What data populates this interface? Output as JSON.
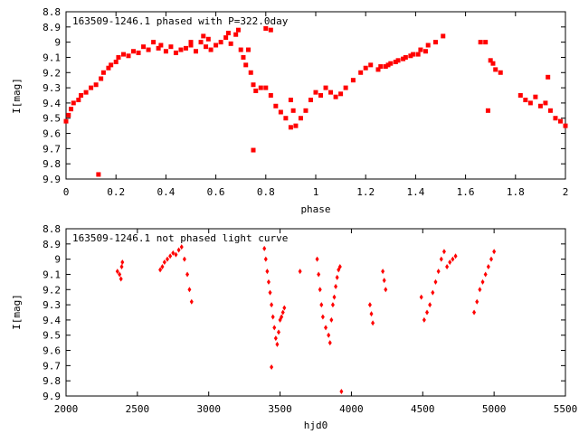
{
  "chart_data": [
    {
      "type": "scatter",
      "title": "163509-1246.1 phased with P=322.0day",
      "xlabel": "phase",
      "ylabel": "I[mag]",
      "xlim": [
        0,
        2
      ],
      "ylim": [
        9.9,
        8.8
      ],
      "y_inverted": true,
      "x_ticks": [
        "0",
        "0.2",
        "0.4",
        "0.6",
        "0.8",
        "1",
        "1.2",
        "1.4",
        "1.6",
        "1.8",
        "2"
      ],
      "y_ticks": [
        "8.8",
        "8.9",
        "9",
        "9.1",
        "9.2",
        "9.3",
        "9.4",
        "9.5",
        "9.6",
        "9.7",
        "9.8",
        "9.9"
      ],
      "marker": "filled-square",
      "series": [
        {
          "color": "#ff0000",
          "x": [
            0.0,
            0.01,
            0.02,
            0.03,
            0.05,
            0.06,
            0.08,
            0.1,
            0.12,
            0.14,
            0.15,
            0.17,
            0.18,
            0.2,
            0.21,
            0.23,
            0.25,
            0.27,
            0.29,
            0.31,
            0.33,
            0.35,
            0.37,
            0.38,
            0.4,
            0.42,
            0.44,
            0.46,
            0.48,
            0.5,
            0.52,
            0.54,
            0.56,
            0.57,
            0.58,
            0.6,
            0.62,
            0.64,
            0.66,
            0.68,
            0.7,
            0.71,
            0.72,
            0.74,
            0.75,
            0.76,
            0.78,
            0.8,
            0.82,
            0.84,
            0.86,
            0.88,
            0.9,
            0.92,
            0.94,
            0.96,
            0.98,
            1.0,
            1.02,
            1.04,
            1.06,
            1.08,
            1.1,
            1.12,
            1.15,
            1.18,
            1.2,
            1.22,
            1.25,
            1.28,
            1.3,
            1.33,
            1.36,
            1.39,
            1.42,
            1.45,
            1.48,
            1.51,
            0.13,
            0.75,
            0.5,
            0.55,
            0.65,
            0.69,
            0.73,
            0.8,
            0.82,
            0.9,
            0.91,
            1.26,
            1.29,
            1.32,
            1.35,
            1.38,
            1.41,
            1.44,
            1.66,
            1.68,
            1.69,
            1.7,
            1.71,
            1.72,
            1.74,
            1.82,
            1.84,
            1.86,
            1.88,
            1.9,
            1.92,
            1.93,
            1.94,
            1.96,
            1.98,
            2.0
          ],
          "y": [
            9.52,
            9.48,
            9.44,
            9.4,
            9.38,
            9.35,
            9.33,
            9.3,
            9.28,
            9.24,
            9.2,
            9.17,
            9.15,
            9.13,
            9.1,
            9.08,
            9.09,
            9.06,
            9.07,
            9.03,
            9.05,
            9.0,
            9.04,
            9.02,
            9.06,
            9.03,
            9.07,
            9.05,
            9.04,
            9.02,
            9.06,
            9.0,
            9.03,
            8.98,
            9.05,
            9.02,
            9.0,
            8.97,
            9.01,
            8.95,
            9.05,
            9.1,
            9.15,
            9.2,
            9.28,
            9.32,
            9.3,
            9.3,
            9.35,
            9.42,
            9.46,
            9.5,
            9.56,
            9.55,
            9.5,
            9.45,
            9.38,
            9.33,
            9.35,
            9.3,
            9.33,
            9.36,
            9.34,
            9.3,
            9.25,
            9.2,
            9.17,
            9.15,
            9.18,
            9.16,
            9.14,
            9.12,
            9.1,
            9.08,
            9.05,
            9.02,
            9.0,
            8.96,
            9.87,
            9.71,
            9.0,
            8.96,
            8.94,
            8.92,
            9.05,
            8.91,
            8.92,
            9.38,
            9.45,
            9.16,
            9.15,
            9.13,
            9.11,
            9.09,
            9.08,
            9.06,
            9.0,
            9.0,
            9.45,
            9.12,
            9.14,
            9.18,
            9.2,
            9.35,
            9.38,
            9.4,
            9.36,
            9.42,
            9.4,
            9.23,
            9.45,
            9.5,
            9.52,
            9.55
          ]
        }
      ]
    },
    {
      "type": "scatter",
      "title": "163509-1246.1 not phased light curve",
      "xlabel": "hjd0",
      "ylabel": "I[mag]",
      "xlim": [
        2000,
        5500
      ],
      "ylim": [
        9.9,
        8.8
      ],
      "y_inverted": true,
      "x_ticks": [
        "2000",
        "2500",
        "3000",
        "3500",
        "4000",
        "4500",
        "5000",
        "5500"
      ],
      "y_ticks": [
        "8.8",
        "8.9",
        "9",
        "9.1",
        "9.2",
        "9.3",
        "9.4",
        "9.5",
        "9.6",
        "9.7",
        "9.8",
        "9.9"
      ],
      "marker": "filled-diamond",
      "series": [
        {
          "color": "#ff0000",
          "x": [
            2360,
            2375,
            2385,
            2390,
            2395,
            2660,
            2675,
            2690,
            2710,
            2730,
            2750,
            2770,
            2790,
            2810,
            2830,
            2850,
            2865,
            2880,
            3390,
            3400,
            3410,
            3420,
            3430,
            3440,
            3450,
            3460,
            3470,
            3480,
            3490,
            3500,
            3510,
            3520,
            3530,
            3440,
            3640,
            3760,
            3770,
            3780,
            3790,
            3800,
            3820,
            3840,
            3850,
            3860,
            3870,
            3880,
            3890,
            3900,
            3910,
            3920,
            3930,
            4130,
            4140,
            4150,
            4220,
            4230,
            4240,
            4490,
            4510,
            4530,
            4550,
            4570,
            4590,
            4610,
            4630,
            4650,
            4670,
            4690,
            4710,
            4730,
            4860,
            4880,
            4900,
            4920,
            4940,
            4960,
            4980,
            5000
          ],
          "y": [
            9.08,
            9.1,
            9.13,
            9.05,
            9.02,
            9.07,
            9.05,
            9.02,
            9.0,
            8.98,
            8.96,
            8.97,
            8.94,
            8.92,
            9.0,
            9.1,
            9.2,
            9.28,
            8.93,
            9.0,
            9.08,
            9.15,
            9.22,
            9.3,
            9.38,
            9.45,
            9.52,
            9.56,
            9.48,
            9.4,
            9.38,
            9.35,
            9.32,
            9.71,
            9.08,
            9.0,
            9.1,
            9.2,
            9.3,
            9.38,
            9.45,
            9.5,
            9.55,
            9.4,
            9.3,
            9.25,
            9.18,
            9.12,
            9.07,
            9.05,
            9.87,
            9.3,
            9.36,
            9.42,
            9.08,
            9.14,
            9.2,
            9.25,
            9.4,
            9.35,
            9.3,
            9.22,
            9.15,
            9.08,
            9.0,
            8.95,
            9.05,
            9.02,
            9.0,
            8.98,
            9.35,
            9.28,
            9.2,
            9.15,
            9.1,
            9.05,
            9.0,
            8.95
          ]
        }
      ]
    }
  ]
}
